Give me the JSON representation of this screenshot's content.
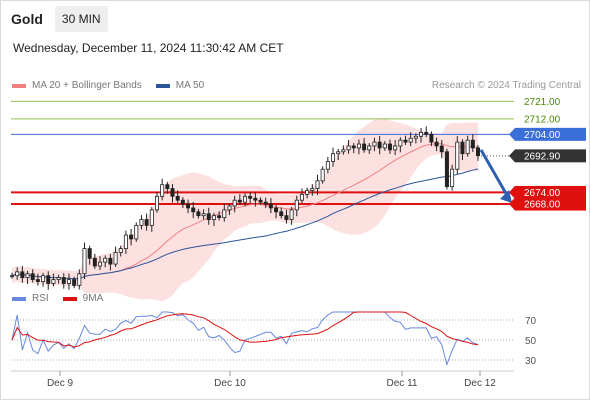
{
  "header": {
    "instrument": "Gold",
    "timeframe": "30 MIN"
  },
  "datetime": "Wednesday, December 11, 2024 11:30:42 AM CET",
  "legend": {
    "ma20": {
      "label": "MA 20 + Bollinger Bands",
      "color": "#f08080"
    },
    "ma50": {
      "label": "MA 50",
      "color": "#2a5599"
    }
  },
  "credit": "Research © 2024 Trading Central",
  "rsi_legend": {
    "rsi": {
      "label": "RSI",
      "color": "#6688dd"
    },
    "ma9": {
      "label": "9MA",
      "color": "#dd1111"
    }
  },
  "chart_data": {
    "type": "line",
    "x_axis_labels": [
      "Dec 9",
      "Dec 10",
      "Dec 11",
      "Dec 12"
    ],
    "price_levels": [
      {
        "value": 2721.0,
        "label": "2721.00",
        "style": "target",
        "color": "#8fbf4f"
      },
      {
        "value": 2712.0,
        "label": "2712.00",
        "style": "target",
        "color": "#8fbf4f"
      },
      {
        "value": 2704.0,
        "label": "2704.00",
        "style": "resistance",
        "color": "#3b6fd8"
      },
      {
        "value": 2692.9,
        "label": "2692.90",
        "style": "last",
        "color": "#333333"
      },
      {
        "value": 2674.0,
        "label": "2674.00",
        "style": "support",
        "color": "#e01010"
      },
      {
        "value": 2668.0,
        "label": "2668.00",
        "style": "support",
        "color": "#e01010"
      }
    ],
    "close_prices": [
      2631,
      2633,
      2630,
      2632,
      2629,
      2628,
      2631,
      2627,
      2629,
      2630,
      2627,
      2629,
      2626,
      2632,
      2645,
      2640,
      2636,
      2638,
      2640,
      2637,
      2643,
      2645,
      2652,
      2650,
      2657,
      2660,
      2657,
      2665,
      2672,
      2678,
      2676,
      2672,
      2670,
      2668,
      2666,
      2664,
      2662,
      2663,
      2660,
      2662,
      2661,
      2665,
      2667,
      2670,
      2669,
      2672,
      2671,
      2670,
      2669,
      2668,
      2666,
      2664,
      2662,
      2660,
      2665,
      2670,
      2673,
      2675,
      2676,
      2680,
      2686,
      2690,
      2694,
      2695,
      2696,
      2698,
      2697,
      2699,
      2696,
      2698,
      2700,
      2697,
      2699,
      2696,
      2698,
      2701,
      2700,
      2702,
      2703,
      2705,
      2704,
      2700,
      2698,
      2695,
      2677,
      2686,
      2700,
      2694,
      2701,
      2697,
      2693
    ],
    "rsi": {
      "levels": [
        70,
        50,
        30
      ]
    }
  }
}
